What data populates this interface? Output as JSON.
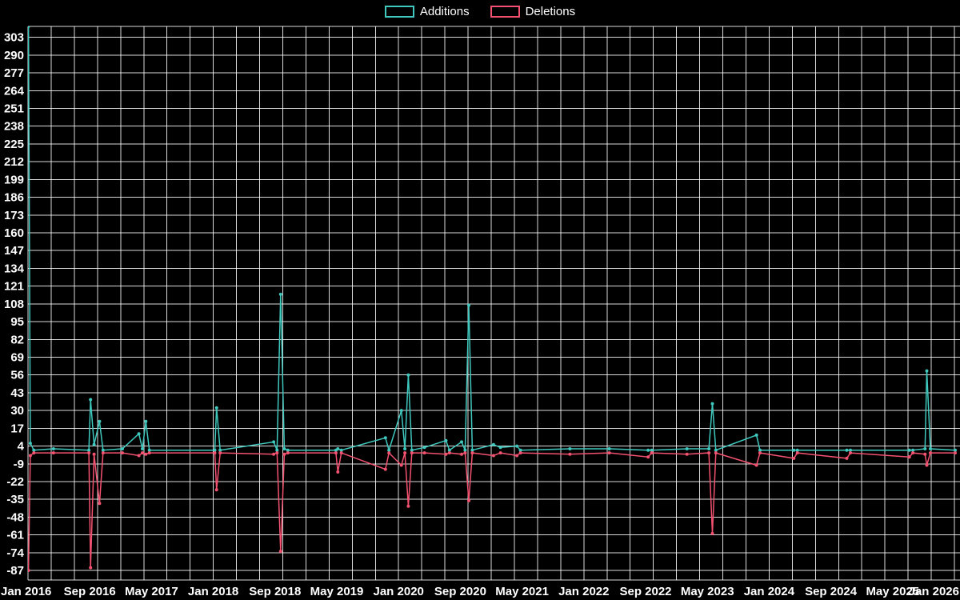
{
  "chart_data": {
    "type": "line",
    "title": "",
    "legend_position": "top-center",
    "background": "#000000",
    "grid": {
      "on": true,
      "color": "rgba(255,255,255,0.85)",
      "v_step_months": 3
    },
    "ylim": [
      -94,
      311
    ],
    "y_tick_labels": [
      303,
      290,
      277,
      264,
      251,
      238,
      225,
      212,
      199,
      186,
      173,
      160,
      147,
      134,
      121,
      108,
      95,
      82,
      69,
      56,
      43,
      30,
      17,
      4,
      -9,
      -22,
      -35,
      -48,
      -61,
      -74,
      -87
    ],
    "x_tick_labels": [
      "Jan 2016",
      "Sep 2016",
      "May 2017",
      "Jan 2018",
      "Sep 2018",
      "May 2019",
      "Jan 2020",
      "Sep 2020",
      "May 2021",
      "Jan 2022",
      "Sep 2022",
      "May 2023",
      "Jan 2024",
      "Sep 2024",
      "May 2025",
      "Jan 2026"
    ],
    "x_label_step_months": 8,
    "series": [
      {
        "name": "Additions",
        "color": "#3fc8bd",
        "key": "a"
      },
      {
        "name": "Deletions",
        "color": "#f25270",
        "key": "d"
      }
    ],
    "points": [
      {
        "date": "2016-01-03",
        "a": 311,
        "d": -87
      },
      {
        "date": "2016-01-10",
        "a": 6,
        "d": -3
      },
      {
        "date": "2016-01-24",
        "a": 1,
        "d": -1
      },
      {
        "date": "2016-04-10",
        "a": 2,
        "d": -1
      },
      {
        "date": "2016-08-28",
        "a": 1,
        "d": -1
      },
      {
        "date": "2016-09-04",
        "a": 38,
        "d": -85
      },
      {
        "date": "2016-09-18",
        "a": 5,
        "d": -2
      },
      {
        "date": "2016-10-09",
        "a": 22,
        "d": -38
      },
      {
        "date": "2016-10-23",
        "a": 1,
        "d": -1
      },
      {
        "date": "2017-01-08",
        "a": 2,
        "d": -1
      },
      {
        "date": "2017-03-12",
        "a": 13,
        "d": -3
      },
      {
        "date": "2017-03-26",
        "a": 2,
        "d": -1
      },
      {
        "date": "2017-04-09",
        "a": 22,
        "d": -2
      },
      {
        "date": "2017-04-23",
        "a": 1,
        "d": -1
      },
      {
        "date": "2018-01-07",
        "a": 1,
        "d": -1
      },
      {
        "date": "2018-01-14",
        "a": 32,
        "d": -28
      },
      {
        "date": "2018-01-28",
        "a": 1,
        "d": -1
      },
      {
        "date": "2018-08-26",
        "a": 7,
        "d": -2
      },
      {
        "date": "2018-09-09",
        "a": 1,
        "d": -1
      },
      {
        "date": "2018-09-23",
        "a": 115,
        "d": -73
      },
      {
        "date": "2018-10-07",
        "a": 2,
        "d": -2
      },
      {
        "date": "2018-10-21",
        "a": 1,
        "d": -1
      },
      {
        "date": "2019-04-28",
        "a": 1,
        "d": -1
      },
      {
        "date": "2019-05-05",
        "a": 2,
        "d": -15
      },
      {
        "date": "2019-05-19",
        "a": 1,
        "d": -1
      },
      {
        "date": "2019-11-10",
        "a": 10,
        "d": -13
      },
      {
        "date": "2019-11-24",
        "a": 1,
        "d": -1
      },
      {
        "date": "2020-01-12",
        "a": 30,
        "d": -10
      },
      {
        "date": "2020-01-26",
        "a": 2,
        "d": -1
      },
      {
        "date": "2020-02-09",
        "a": 56,
        "d": -40
      },
      {
        "date": "2020-02-23",
        "a": 1,
        "d": -1
      },
      {
        "date": "2020-04-12",
        "a": 3,
        "d": -1
      },
      {
        "date": "2020-07-05",
        "a": 8,
        "d": -2
      },
      {
        "date": "2020-07-19",
        "a": 1,
        "d": -1
      },
      {
        "date": "2020-09-06",
        "a": 7,
        "d": -2
      },
      {
        "date": "2020-09-20",
        "a": 1,
        "d": -1
      },
      {
        "date": "2020-10-04",
        "a": 107,
        "d": -36
      },
      {
        "date": "2020-10-18",
        "a": 1,
        "d": -1
      },
      {
        "date": "2021-01-10",
        "a": 5,
        "d": -3
      },
      {
        "date": "2021-02-07",
        "a": 3,
        "d": -1
      },
      {
        "date": "2021-04-11",
        "a": 4,
        "d": -3
      },
      {
        "date": "2021-04-25",
        "a": 1,
        "d": -1
      },
      {
        "date": "2021-11-07",
        "a": 2,
        "d": -2
      },
      {
        "date": "2022-04-10",
        "a": 2,
        "d": -1
      },
      {
        "date": "2022-09-11",
        "a": 1,
        "d": -4
      },
      {
        "date": "2022-09-25",
        "a": 1,
        "d": -1
      },
      {
        "date": "2023-02-12",
        "a": 2,
        "d": -2
      },
      {
        "date": "2023-05-07",
        "a": 2,
        "d": -1
      },
      {
        "date": "2023-05-21",
        "a": 35,
        "d": -60
      },
      {
        "date": "2023-06-04",
        "a": 1,
        "d": -1
      },
      {
        "date": "2023-11-12",
        "a": 12,
        "d": -10
      },
      {
        "date": "2023-11-26",
        "a": 1,
        "d": -1
      },
      {
        "date": "2024-04-07",
        "a": 1,
        "d": -5
      },
      {
        "date": "2024-04-21",
        "a": 1,
        "d": -1
      },
      {
        "date": "2024-11-03",
        "a": 1,
        "d": -5
      },
      {
        "date": "2024-11-17",
        "a": 1,
        "d": -1
      },
      {
        "date": "2025-07-06",
        "a": 1,
        "d": -4
      },
      {
        "date": "2025-07-20",
        "a": 1,
        "d": -1
      },
      {
        "date": "2025-09-07",
        "a": 2,
        "d": -2
      },
      {
        "date": "2025-09-14",
        "a": 59,
        "d": -10
      },
      {
        "date": "2025-09-28",
        "a": 2,
        "d": -1
      },
      {
        "date": "2026-01-04",
        "a": 1,
        "d": -1
      }
    ]
  }
}
